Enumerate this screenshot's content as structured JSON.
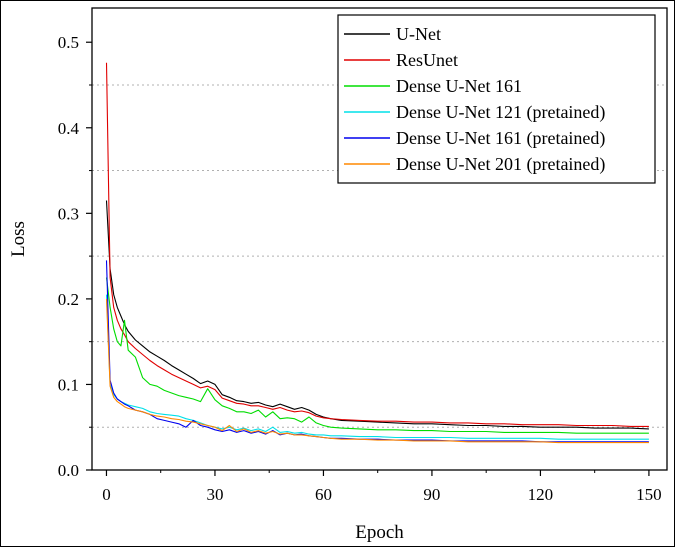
{
  "chart_data": {
    "type": "line",
    "xlabel": "Epoch",
    "ylabel": "Loss",
    "xlim": [
      -4,
      155
    ],
    "ylim": [
      0,
      0.54
    ],
    "x_ticks": [
      0,
      30,
      60,
      90,
      120,
      150
    ],
    "y_ticks": [
      0.0,
      0.1,
      0.2,
      0.3,
      0.4,
      0.5
    ],
    "y_tick_labels": [
      "0.0",
      "0.1",
      "0.2",
      "0.3",
      "0.4",
      "0.5"
    ],
    "grid": "horizontal dotted at 0.05, 0.15, 0.25, 0.35, 0.45",
    "legend_position": "top-right",
    "series": [
      {
        "name": "U-Net",
        "color": "#000000",
        "x": [
          0,
          1,
          2,
          3,
          4,
          5,
          6,
          8,
          10,
          12,
          14,
          16,
          18,
          20,
          22,
          24,
          26,
          28,
          30,
          32,
          34,
          36,
          38,
          40,
          42,
          44,
          46,
          48,
          50,
          52,
          54,
          56,
          58,
          60,
          62,
          65,
          70,
          75,
          80,
          85,
          90,
          95,
          100,
          105,
          110,
          115,
          120,
          125,
          130,
          135,
          140,
          145,
          150
        ],
        "y": [
          0.315,
          0.235,
          0.205,
          0.19,
          0.18,
          0.17,
          0.162,
          0.152,
          0.145,
          0.138,
          0.133,
          0.128,
          0.122,
          0.117,
          0.112,
          0.107,
          0.101,
          0.104,
          0.1,
          0.088,
          0.085,
          0.081,
          0.08,
          0.078,
          0.079,
          0.076,
          0.074,
          0.077,
          0.074,
          0.071,
          0.073,
          0.07,
          0.065,
          0.062,
          0.06,
          0.058,
          0.057,
          0.056,
          0.055,
          0.054,
          0.054,
          0.053,
          0.052,
          0.052,
          0.051,
          0.051,
          0.05,
          0.05,
          0.05,
          0.049,
          0.049,
          0.049,
          0.048
        ]
      },
      {
        "name": "ResUnet",
        "color": "#e00000",
        "x": [
          0,
          1,
          2,
          3,
          4,
          5,
          6,
          8,
          10,
          12,
          14,
          16,
          18,
          20,
          22,
          24,
          26,
          28,
          30,
          32,
          34,
          36,
          38,
          40,
          42,
          44,
          46,
          48,
          50,
          52,
          54,
          56,
          58,
          60,
          62,
          65,
          70,
          75,
          80,
          85,
          90,
          95,
          100,
          105,
          110,
          115,
          120,
          125,
          130,
          135,
          140,
          145,
          150
        ],
        "y": [
          0.476,
          0.225,
          0.19,
          0.175,
          0.165,
          0.158,
          0.15,
          0.142,
          0.135,
          0.128,
          0.122,
          0.117,
          0.112,
          0.108,
          0.104,
          0.1,
          0.096,
          0.098,
          0.094,
          0.084,
          0.081,
          0.078,
          0.077,
          0.075,
          0.075,
          0.073,
          0.071,
          0.073,
          0.07,
          0.068,
          0.069,
          0.067,
          0.063,
          0.061,
          0.06,
          0.059,
          0.058,
          0.057,
          0.057,
          0.056,
          0.056,
          0.055,
          0.055,
          0.054,
          0.054,
          0.053,
          0.053,
          0.053,
          0.052,
          0.052,
          0.052,
          0.051,
          0.051
        ]
      },
      {
        "name": "Dense U-Net 161",
        "color": "#00dd00",
        "x": [
          0,
          1,
          2,
          3,
          4,
          5,
          6,
          8,
          10,
          12,
          14,
          16,
          18,
          20,
          22,
          24,
          26,
          28,
          30,
          32,
          34,
          36,
          38,
          40,
          42,
          44,
          46,
          48,
          50,
          52,
          54,
          56,
          58,
          60,
          62,
          65,
          70,
          75,
          80,
          85,
          90,
          95,
          100,
          105,
          110,
          115,
          120,
          125,
          130,
          135,
          140,
          145,
          150
        ],
        "y": [
          0.225,
          0.19,
          0.165,
          0.15,
          0.145,
          0.175,
          0.14,
          0.132,
          0.108,
          0.1,
          0.098,
          0.093,
          0.09,
          0.087,
          0.085,
          0.083,
          0.08,
          0.095,
          0.082,
          0.075,
          0.072,
          0.068,
          0.068,
          0.066,
          0.07,
          0.062,
          0.068,
          0.06,
          0.061,
          0.06,
          0.056,
          0.062,
          0.055,
          0.052,
          0.05,
          0.049,
          0.048,
          0.047,
          0.047,
          0.046,
          0.046,
          0.045,
          0.045,
          0.045,
          0.044,
          0.044,
          0.044,
          0.044,
          0.043,
          0.043,
          0.043,
          0.043,
          0.043
        ]
      },
      {
        "name": "Dense U-Net 121 (pretained)",
        "color": "#00e0e8",
        "x": [
          0,
          1,
          2,
          3,
          4,
          5,
          6,
          8,
          10,
          12,
          14,
          16,
          18,
          20,
          22,
          24,
          26,
          28,
          30,
          32,
          34,
          36,
          38,
          40,
          42,
          44,
          46,
          48,
          50,
          52,
          54,
          56,
          58,
          60,
          62,
          65,
          70,
          75,
          80,
          85,
          90,
          95,
          100,
          105,
          110,
          115,
          120,
          125,
          130,
          135,
          140,
          145,
          150
        ],
        "y": [
          0.205,
          0.1,
          0.088,
          0.083,
          0.08,
          0.078,
          0.076,
          0.074,
          0.072,
          0.068,
          0.066,
          0.065,
          0.064,
          0.063,
          0.06,
          0.058,
          0.055,
          0.052,
          0.05,
          0.048,
          0.05,
          0.047,
          0.049,
          0.046,
          0.048,
          0.045,
          0.05,
          0.044,
          0.045,
          0.043,
          0.044,
          0.042,
          0.041,
          0.041,
          0.04,
          0.04,
          0.039,
          0.039,
          0.038,
          0.038,
          0.038,
          0.038,
          0.037,
          0.037,
          0.037,
          0.037,
          0.037,
          0.036,
          0.036,
          0.036,
          0.036,
          0.036,
          0.036
        ]
      },
      {
        "name": "Dense U-Net 161 (pretained)",
        "color": "#0000ee",
        "x": [
          0,
          1,
          2,
          3,
          4,
          5,
          6,
          8,
          10,
          12,
          14,
          16,
          18,
          20,
          22,
          24,
          26,
          28,
          30,
          32,
          34,
          36,
          38,
          40,
          42,
          44,
          46,
          48,
          50,
          52,
          54,
          56,
          58,
          60,
          62,
          65,
          70,
          75,
          80,
          85,
          90,
          95,
          100,
          105,
          110,
          115,
          120,
          125,
          130,
          135,
          140,
          145,
          150
        ],
        "y": [
          0.245,
          0.105,
          0.09,
          0.083,
          0.08,
          0.077,
          0.075,
          0.07,
          0.068,
          0.065,
          0.06,
          0.058,
          0.056,
          0.054,
          0.05,
          0.058,
          0.052,
          0.05,
          0.047,
          0.045,
          0.047,
          0.044,
          0.046,
          0.043,
          0.045,
          0.042,
          0.046,
          0.041,
          0.043,
          0.041,
          0.042,
          0.04,
          0.039,
          0.038,
          0.037,
          0.037,
          0.036,
          0.036,
          0.035,
          0.035,
          0.035,
          0.034,
          0.034,
          0.034,
          0.034,
          0.034,
          0.033,
          0.033,
          0.033,
          0.033,
          0.033,
          0.033,
          0.033
        ]
      },
      {
        "name": "Dense U-Net 201 (pretained)",
        "color": "#ff8800",
        "x": [
          0,
          1,
          2,
          3,
          4,
          5,
          6,
          8,
          10,
          12,
          14,
          16,
          18,
          20,
          22,
          24,
          26,
          28,
          30,
          32,
          34,
          36,
          38,
          40,
          42,
          44,
          46,
          48,
          50,
          52,
          54,
          56,
          58,
          60,
          62,
          65,
          70,
          75,
          80,
          85,
          90,
          95,
          100,
          105,
          110,
          115,
          120,
          125,
          130,
          135,
          140,
          145,
          150
        ],
        "y": [
          0.2,
          0.098,
          0.085,
          0.08,
          0.077,
          0.074,
          0.072,
          0.07,
          0.068,
          0.065,
          0.063,
          0.062,
          0.06,
          0.059,
          0.057,
          0.056,
          0.054,
          0.052,
          0.05,
          0.046,
          0.052,
          0.045,
          0.048,
          0.044,
          0.046,
          0.043,
          0.045,
          0.042,
          0.043,
          0.041,
          0.041,
          0.04,
          0.039,
          0.038,
          0.037,
          0.036,
          0.036,
          0.035,
          0.035,
          0.034,
          0.034,
          0.034,
          0.033,
          0.033,
          0.033,
          0.033,
          0.033,
          0.032,
          0.032,
          0.032,
          0.032,
          0.032,
          0.032
        ]
      }
    ]
  }
}
